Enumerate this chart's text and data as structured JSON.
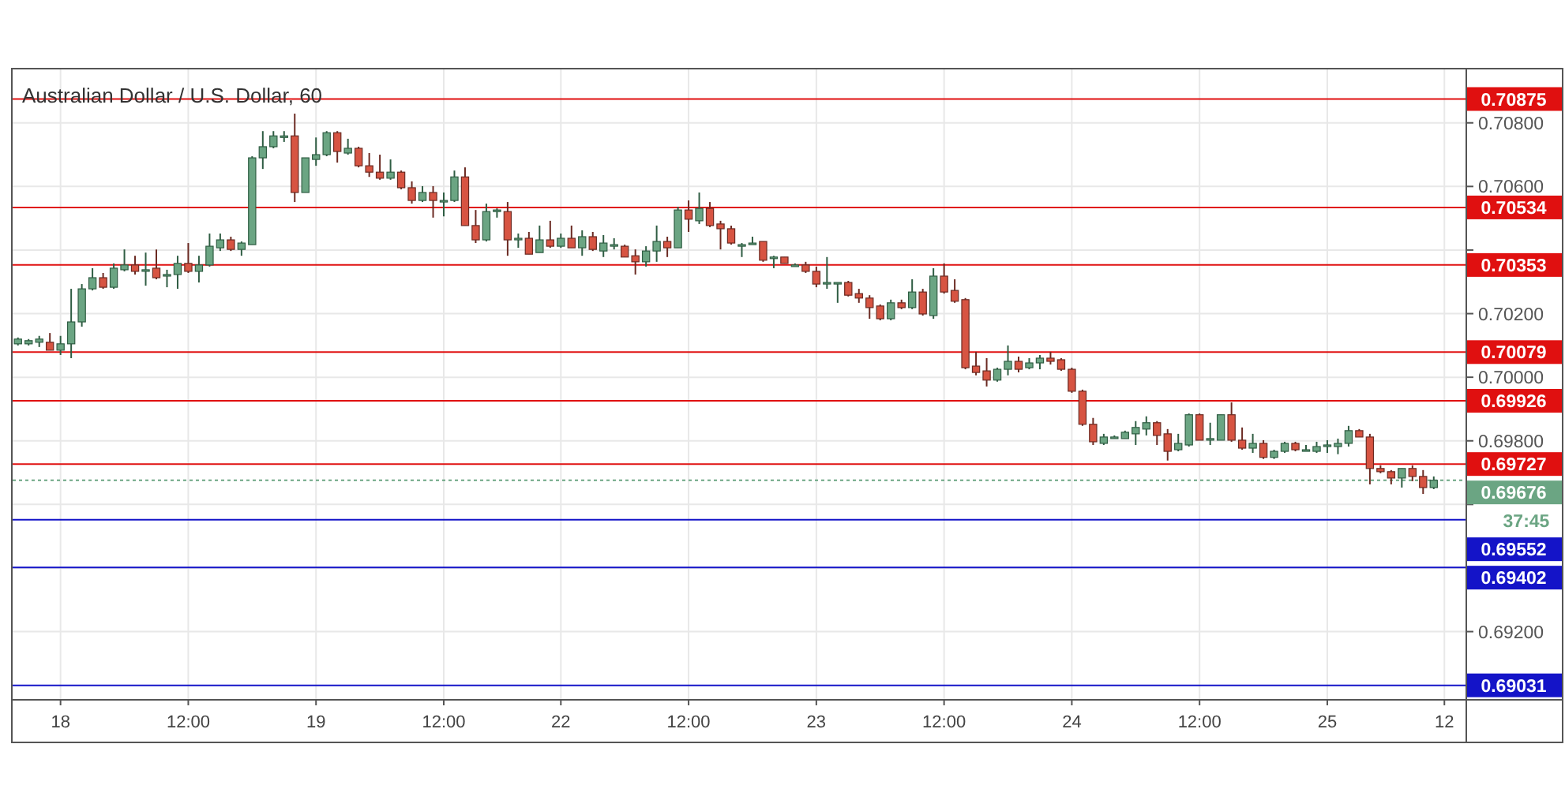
{
  "chart_data": {
    "type": "candlestick",
    "title": "Australian Dollar / U.S. Dollar, 60",
    "categories": [
      null,
      null,
      null,
      null,
      "18",
      null,
      null,
      null,
      null,
      null,
      null,
      null,
      null,
      null,
      null,
      null,
      "12:00",
      null,
      null,
      null,
      null,
      null,
      null,
      null,
      null,
      null,
      null,
      null,
      "19",
      null,
      null,
      null,
      null,
      null,
      null,
      null,
      null,
      null,
      null,
      null,
      "12:00",
      null,
      null,
      null,
      null,
      null,
      null,
      null,
      null,
      null,
      null,
      "22",
      null,
      null,
      null,
      null,
      null,
      null,
      null,
      null,
      null,
      null,
      null,
      "12:00",
      null,
      null,
      null,
      null,
      null,
      null,
      null,
      null,
      null,
      null,
      null,
      "23",
      null,
      null,
      null,
      null,
      null,
      null,
      null,
      null,
      null,
      null,
      null,
      "12:00",
      null,
      null,
      null,
      null,
      null,
      null,
      null,
      null,
      null,
      null,
      null,
      "24",
      null,
      null,
      null,
      null,
      null,
      null,
      null,
      null,
      null,
      null,
      null,
      "12:00",
      null,
      null,
      null,
      null,
      null,
      null,
      null,
      null,
      null,
      null,
      null,
      "25",
      null,
      null,
      null,
      null,
      null,
      null,
      null,
      null,
      null,
      null,
      "12"
    ],
    "ohlc": [
      [
        0.70105,
        0.70125,
        0.701,
        0.7012
      ],
      [
        0.70105,
        0.7012,
        0.701,
        0.70115
      ],
      [
        0.7011,
        0.7013,
        0.70095,
        0.7012
      ],
      [
        0.7011,
        0.70139,
        0.70085,
        0.70085
      ],
      [
        0.70085,
        0.7013,
        0.7007,
        0.70105
      ],
      [
        0.70105,
        0.70278,
        0.7006,
        0.70174
      ],
      [
        0.70174,
        0.70293,
        0.70159,
        0.70278
      ],
      [
        0.70278,
        0.70343,
        0.70273,
        0.70313
      ],
      [
        0.70313,
        0.70328,
        0.70278,
        0.70283
      ],
      [
        0.70283,
        0.70358,
        0.70278,
        0.70343
      ],
      [
        0.70338,
        0.70402,
        0.70333,
        0.70353
      ],
      [
        0.70353,
        0.70382,
        0.70323,
        0.70333
      ],
      [
        0.70338,
        0.70392,
        0.70288,
        0.70338
      ],
      [
        0.70343,
        0.70402,
        0.70308,
        0.70313
      ],
      [
        0.70323,
        0.70338,
        0.70283,
        0.70323
      ],
      [
        0.70323,
        0.70382,
        0.70278,
        0.70358
      ],
      [
        0.70358,
        0.70422,
        0.70328,
        0.70333
      ],
      [
        0.70333,
        0.70382,
        0.70298,
        0.70353
      ],
      [
        0.70353,
        0.70452,
        0.70348,
        0.70412
      ],
      [
        0.70407,
        0.70452,
        0.70397,
        0.70432
      ],
      [
        0.70432,
        0.70442,
        0.70397,
        0.70402
      ],
      [
        0.70402,
        0.70427,
        0.70382,
        0.70422
      ],
      [
        0.70417,
        0.70695,
        0.70417,
        0.7069
      ],
      [
        0.7069,
        0.70774,
        0.70655,
        0.70725
      ],
      [
        0.70725,
        0.70774,
        0.7072,
        0.70759
      ],
      [
        0.70759,
        0.70774,
        0.7074,
        0.70759
      ],
      [
        0.70759,
        0.70829,
        0.70551,
        0.70581
      ],
      [
        0.70581,
        0.7069,
        0.70581,
        0.7069
      ],
      [
        0.70685,
        0.70754,
        0.70665,
        0.707
      ],
      [
        0.707,
        0.70774,
        0.70695,
        0.70769
      ],
      [
        0.70769,
        0.70774,
        0.70675,
        0.7071
      ],
      [
        0.70705,
        0.7075,
        0.707,
        0.7072
      ],
      [
        0.7072,
        0.70725,
        0.7066,
        0.70665
      ],
      [
        0.70665,
        0.70705,
        0.7063,
        0.70645
      ],
      [
        0.70645,
        0.707,
        0.70621,
        0.70626
      ],
      [
        0.70626,
        0.70685,
        0.70621,
        0.70645
      ],
      [
        0.70645,
        0.7065,
        0.70591,
        0.70596
      ],
      [
        0.70596,
        0.70616,
        0.70546,
        0.70556
      ],
      [
        0.70556,
        0.70601,
        0.70551,
        0.70581
      ],
      [
        0.70581,
        0.70601,
        0.70502,
        0.70556
      ],
      [
        0.70556,
        0.70581,
        0.70506,
        0.70556
      ],
      [
        0.70556,
        0.7065,
        0.70551,
        0.7063
      ],
      [
        0.7063,
        0.7066,
        0.70477,
        0.70477
      ],
      [
        0.70477,
        0.70526,
        0.70422,
        0.70432
      ],
      [
        0.70432,
        0.70546,
        0.70427,
        0.70521
      ],
      [
        0.70526,
        0.70531,
        0.70502,
        0.70526
      ],
      [
        0.70521,
        0.70551,
        0.70382,
        0.70432
      ],
      [
        0.70437,
        0.70452,
        0.70407,
        0.70437
      ],
      [
        0.70437,
        0.70457,
        0.70387,
        0.70387
      ],
      [
        0.70392,
        0.70477,
        0.70392,
        0.70432
      ],
      [
        0.70432,
        0.70492,
        0.70407,
        0.70412
      ],
      [
        0.70412,
        0.70452,
        0.70407,
        0.70437
      ],
      [
        0.70437,
        0.70477,
        0.70407,
        0.70407
      ],
      [
        0.70407,
        0.70462,
        0.70382,
        0.70442
      ],
      [
        0.70442,
        0.70457,
        0.70397,
        0.70402
      ],
      [
        0.70397,
        0.70447,
        0.70378,
        0.70422
      ],
      [
        0.70417,
        0.70437,
        0.70402,
        0.70417
      ],
      [
        0.70412,
        0.70417,
        0.70378,
        0.70378
      ],
      [
        0.70382,
        0.70402,
        0.70323,
        0.70363
      ],
      [
        0.70363,
        0.70412,
        0.70348,
        0.70397
      ],
      [
        0.70397,
        0.70477,
        0.70363,
        0.70427
      ],
      [
        0.70427,
        0.70442,
        0.70378,
        0.70407
      ],
      [
        0.70407,
        0.70536,
        0.70407,
        0.70526
      ],
      [
        0.70526,
        0.70556,
        0.70457,
        0.70497
      ],
      [
        0.70492,
        0.70581,
        0.70482,
        0.70531
      ],
      [
        0.70531,
        0.70551,
        0.70472,
        0.70477
      ],
      [
        0.70482,
        0.70492,
        0.70402,
        0.70467
      ],
      [
        0.70467,
        0.70477,
        0.70417,
        0.70422
      ],
      [
        0.70417,
        0.70422,
        0.70378,
        0.70417
      ],
      [
        0.70422,
        0.70442,
        0.70417,
        0.70422
      ],
      [
        0.70427,
        0.70427,
        0.70363,
        0.70368
      ],
      [
        0.70378,
        0.70382,
        0.70343,
        0.70378
      ],
      [
        0.70378,
        0.70378,
        0.70358,
        0.70358
      ],
      [
        0.70353,
        0.70358,
        0.70353,
        0.70353
      ],
      [
        0.70353,
        0.70363,
        0.70328,
        0.70333
      ],
      [
        0.70333,
        0.70348,
        0.70283,
        0.70293
      ],
      [
        0.70298,
        0.70378,
        0.70278,
        0.70298
      ],
      [
        0.70298,
        0.70298,
        0.70234,
        0.70298
      ],
      [
        0.70298,
        0.70303,
        0.70254,
        0.70258
      ],
      [
        0.70263,
        0.70278,
        0.70234,
        0.70249
      ],
      [
        0.70249,
        0.70258,
        0.70184,
        0.70219
      ],
      [
        0.70224,
        0.70229,
        0.70179,
        0.70184
      ],
      [
        0.70184,
        0.70244,
        0.70179,
        0.70234
      ],
      [
        0.70234,
        0.70244,
        0.70214,
        0.70219
      ],
      [
        0.70219,
        0.70308,
        0.70214,
        0.70268
      ],
      [
        0.70268,
        0.70278,
        0.70194,
        0.70199
      ],
      [
        0.70194,
        0.70343,
        0.70184,
        0.70318
      ],
      [
        0.70318,
        0.70358,
        0.70263,
        0.70268
      ],
      [
        0.70273,
        0.70308,
        0.70234,
        0.70239
      ],
      [
        0.70244,
        0.70249,
        0.70025,
        0.7003
      ],
      [
        0.70035,
        0.7008,
        0.70006,
        0.70015
      ],
      [
        0.7002,
        0.7006,
        0.69971,
        0.69991
      ],
      [
        0.69991,
        0.7003,
        0.69986,
        0.70025
      ],
      [
        0.70025,
        0.701,
        0.70006,
        0.7005
      ],
      [
        0.7005,
        0.70065,
        0.70015,
        0.70025
      ],
      [
        0.7003,
        0.7006,
        0.70025,
        0.70045
      ],
      [
        0.70045,
        0.7007,
        0.70025,
        0.7006
      ],
      [
        0.7006,
        0.7008,
        0.7004,
        0.7005
      ],
      [
        0.70055,
        0.7006,
        0.7002,
        0.70025
      ],
      [
        0.70025,
        0.7003,
        0.69951,
        0.69956
      ],
      [
        0.69956,
        0.69961,
        0.69847,
        0.69852
      ],
      [
        0.69852,
        0.69872,
        0.69787,
        0.69797
      ],
      [
        0.69792,
        0.69822,
        0.69787,
        0.69812
      ],
      [
        0.69812,
        0.69817,
        0.69807,
        0.69812
      ],
      [
        0.69807,
        0.69832,
        0.69807,
        0.69827
      ],
      [
        0.69822,
        0.69862,
        0.69787,
        0.69842
      ],
      [
        0.69837,
        0.69877,
        0.69817,
        0.69857
      ],
      [
        0.69857,
        0.69862,
        0.69787,
        0.69817
      ],
      [
        0.69822,
        0.69837,
        0.69738,
        0.69767
      ],
      [
        0.69772,
        0.69822,
        0.69767,
        0.69792
      ],
      [
        0.69787,
        0.69886,
        0.69782,
        0.69882
      ],
      [
        0.69882,
        0.69886,
        0.69802,
        0.69802
      ],
      [
        0.69807,
        0.69857,
        0.69787,
        0.69807
      ],
      [
        0.69802,
        0.69882,
        0.69802,
        0.69882
      ],
      [
        0.69882,
        0.69921,
        0.69797,
        0.69802
      ],
      [
        0.69802,
        0.69842,
        0.69772,
        0.69777
      ],
      [
        0.69777,
        0.69822,
        0.69762,
        0.69792
      ],
      [
        0.69792,
        0.69802,
        0.69743,
        0.69748
      ],
      [
        0.69748,
        0.69772,
        0.69743,
        0.69767
      ],
      [
        0.69767,
        0.69797,
        0.69762,
        0.69792
      ],
      [
        0.69792,
        0.69797,
        0.69767,
        0.69772
      ],
      [
        0.69772,
        0.69787,
        0.69772,
        0.69772
      ],
      [
        0.69767,
        0.69797,
        0.69762,
        0.69782
      ],
      [
        0.69787,
        0.69802,
        0.69762,
        0.69787
      ],
      [
        0.69782,
        0.69807,
        0.69758,
        0.69792
      ],
      [
        0.69792,
        0.69847,
        0.69782,
        0.69832
      ],
      [
        0.69832,
        0.69837,
        0.69812,
        0.69812
      ],
      [
        0.69812,
        0.69822,
        0.69663,
        0.69713
      ],
      [
        0.69713,
        0.69723,
        0.69698,
        0.69703
      ],
      [
        0.69703,
        0.69708,
        0.69663,
        0.69683
      ],
      [
        0.69683,
        0.69713,
        0.69653,
        0.69713
      ],
      [
        0.69713,
        0.69723,
        0.69673,
        0.69688
      ],
      [
        0.69688,
        0.69708,
        0.69633,
        0.69653
      ],
      [
        0.69653,
        0.69688,
        0.69648,
        0.69676
      ],
      null
    ],
    "ylim": [
      0.68988,
      0.70973
    ],
    "yticks": [
      {
        "value": 0.692,
        "label": "0.69200"
      },
      {
        "value": 0.694,
        "label": null
      },
      {
        "value": 0.696,
        "label": null
      },
      {
        "value": 0.698,
        "label": "0.69800"
      },
      {
        "value": 0.7,
        "label": "0.70000"
      },
      {
        "value": 0.702,
        "label": "0.70200"
      },
      {
        "value": 0.704,
        "label": null
      },
      {
        "value": 0.706,
        "label": "0.70600"
      },
      {
        "value": 0.708,
        "label": "0.70800"
      }
    ],
    "grid": true,
    "ref_lines": [
      {
        "axis": "y",
        "value": 0.70875,
        "label": "0.70875",
        "color": "#e01010"
      },
      {
        "axis": "y",
        "value": 0.70534,
        "label": "0.70534",
        "color": "#e01010"
      },
      {
        "axis": "y",
        "value": 0.70353,
        "label": "0.70353",
        "color": "#e01010"
      },
      {
        "axis": "y",
        "value": 0.70079,
        "label": "0.70079",
        "color": "#e01010"
      },
      {
        "axis": "y",
        "value": 0.69926,
        "label": "0.69926",
        "color": "#e01010"
      },
      {
        "axis": "y",
        "value": 0.69727,
        "label": "0.69727",
        "color": "#e01010"
      },
      {
        "axis": "y",
        "value": 0.69676,
        "label": "0.69676",
        "color": "#6ba583",
        "line_style": "dotted"
      },
      {
        "axis": "y",
        "value": 0.69552,
        "label": "0.69552",
        "color": "#1414c8"
      },
      {
        "axis": "y",
        "value": 0.69402,
        "label": "0.69402",
        "color": "#1414c8"
      },
      {
        "axis": "y",
        "value": 0.69031,
        "label": "0.69031",
        "color": "#1414c8"
      }
    ],
    "annotations": [
      "37:45"
    ]
  }
}
